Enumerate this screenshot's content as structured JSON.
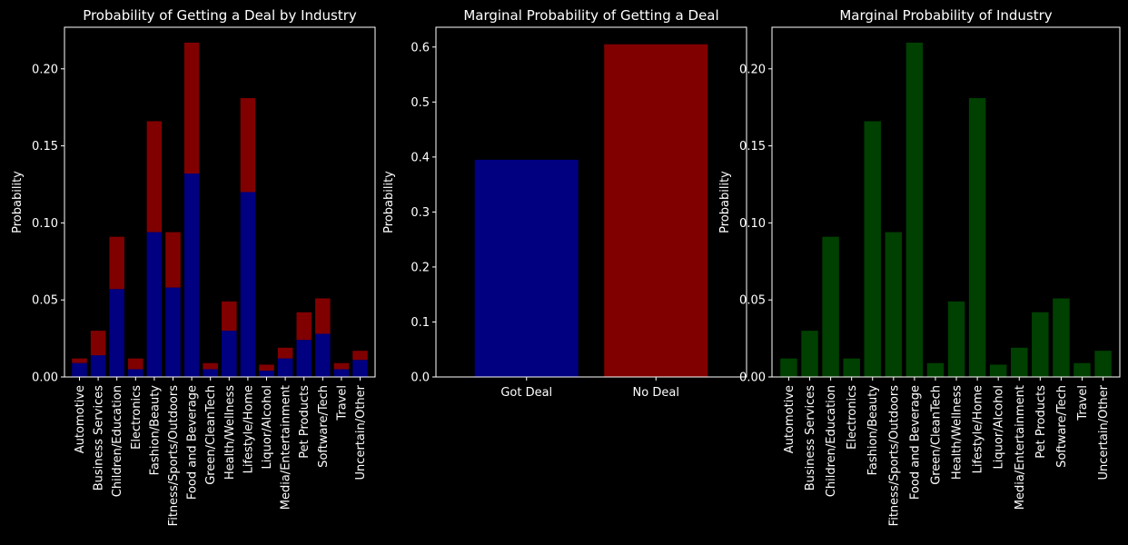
{
  "colors": {
    "background": "#000000",
    "axes": "#ffffff",
    "got_deal": "#000080",
    "no_deal": "#800000",
    "industry": "#004000"
  },
  "chart_data": [
    {
      "type": "bar",
      "stacked": true,
      "title": "Probability of Getting a Deal by Industry",
      "xlabel": "",
      "ylabel": "Probability",
      "ylim": [
        0,
        0.227
      ],
      "yticks": [
        "0.00",
        "0.05",
        "0.10",
        "0.15",
        "0.20"
      ],
      "grid": false,
      "categories": [
        "Automotive",
        "Business Services",
        "Children/Education",
        "Electronics",
        "Fashion/Beauty",
        "Fitness/Sports/Outdoors",
        "Food and Beverage",
        "Green/CleanTech",
        "Health/Wellness",
        "Lifestyle/Home",
        "Liquor/Alcohol",
        "Media/Entertainment",
        "Pet Products",
        "Software/Tech",
        "Travel",
        "Uncertain/Other"
      ],
      "series": [
        {
          "values": [
            0.009,
            0.014,
            0.057,
            0.005,
            0.094,
            0.058,
            0.132,
            0.005,
            0.03,
            0.12,
            0.004,
            0.012,
            0.024,
            0.028,
            0.005,
            0.011
          ]
        },
        {
          "values": [
            0.003,
            0.016,
            0.034,
            0.007,
            0.072,
            0.036,
            0.085,
            0.004,
            0.019,
            0.061,
            0.004,
            0.007,
            0.018,
            0.023,
            0.004,
            0.006
          ]
        }
      ]
    },
    {
      "type": "bar",
      "title": "Marginal Probability of Getting a Deal",
      "xlabel": "",
      "ylabel": "Probability",
      "ylim": [
        0,
        0.636
      ],
      "yticks": [
        "0.0",
        "0.1",
        "0.2",
        "0.3",
        "0.4",
        "0.5",
        "0.6"
      ],
      "grid": false,
      "categories": [
        "Got Deal",
        "No Deal"
      ],
      "values": [
        0.395,
        0.605
      ]
    },
    {
      "type": "bar",
      "title": "Marginal Probability of Industry",
      "xlabel": "",
      "ylabel": "Probability",
      "ylim": [
        0,
        0.227
      ],
      "yticks": [
        "0.00",
        "0.05",
        "0.10",
        "0.15",
        "0.20"
      ],
      "grid": false,
      "categories": [
        "Automotive",
        "Business Services",
        "Children/Education",
        "Electronics",
        "Fashion/Beauty",
        "Fitness/Sports/Outdoors",
        "Food and Beverage",
        "Green/CleanTech",
        "Health/Wellness",
        "Lifestyle/Home",
        "Liquor/Alcohol",
        "Media/Entertainment",
        "Pet Products",
        "Software/Tech",
        "Travel",
        "Uncertain/Other"
      ],
      "values": [
        0.012,
        0.03,
        0.091,
        0.012,
        0.166,
        0.094,
        0.217,
        0.009,
        0.049,
        0.181,
        0.008,
        0.019,
        0.042,
        0.051,
        0.009,
        0.017
      ]
    }
  ]
}
